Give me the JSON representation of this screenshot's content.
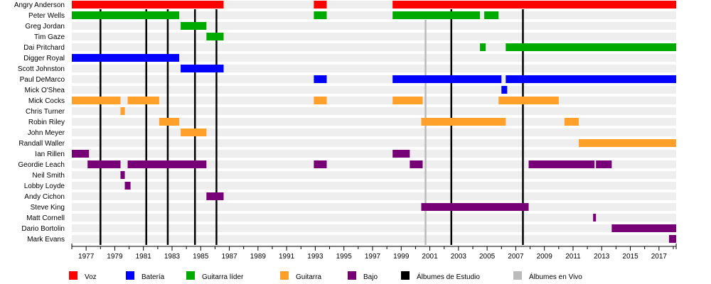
{
  "chart_data": {
    "type": "timeline",
    "title": "",
    "xlabel": "",
    "ylabel": "",
    "xlim": [
      1976.0,
      2018.2
    ],
    "x_ticks": [
      1977,
      1979,
      1981,
      1983,
      1985,
      1987,
      1989,
      1991,
      1993,
      1995,
      1997,
      1999,
      2001,
      2003,
      2005,
      2007,
      2009,
      2011,
      2013,
      2015,
      2017
    ],
    "roles": {
      "voz": {
        "label": "Voz",
        "color": "#ff0000"
      },
      "bateria": {
        "label": "Batería",
        "color": "#0000ff"
      },
      "guitarra_lider": {
        "label": "Guitarra líder",
        "color": "#00aa00"
      },
      "guitarra": {
        "label": "Guitarra",
        "color": "#ffa02a"
      },
      "bajo": {
        "label": "Bajo",
        "color": "#770077"
      },
      "estudio": {
        "label": "Álbumes de Estudio",
        "color": "#000000"
      },
      "vivo": {
        "label": "Álbumes en Vivo",
        "color": "#bbbbbb"
      }
    },
    "legend_order": [
      "voz",
      "bateria",
      "guitarra_lider",
      "guitarra",
      "bajo",
      "estudio",
      "vivo"
    ],
    "members": [
      {
        "name": "Angry Anderson",
        "spans": [
          {
            "role": "voz",
            "start": 1976.0,
            "end": 1986.6
          },
          {
            "role": "voz",
            "start": 1992.9,
            "end": 1993.8
          },
          {
            "role": "voz",
            "start": 1998.4,
            "end": 2018.2
          }
        ]
      },
      {
        "name": "Peter Wells",
        "spans": [
          {
            "role": "guitarra_lider",
            "start": 1976.0,
            "end": 1983.5
          },
          {
            "role": "guitarra_lider",
            "start": 1992.9,
            "end": 1993.8
          },
          {
            "role": "guitarra_lider",
            "start": 1998.4,
            "end": 2004.5
          },
          {
            "role": "guitarra_lider",
            "start": 2004.8,
            "end": 2005.8
          }
        ]
      },
      {
        "name": "Greg Jordan",
        "spans": [
          {
            "role": "guitarra_lider",
            "start": 1983.6,
            "end": 1985.4
          }
        ]
      },
      {
        "name": "Tim Gaze",
        "spans": [
          {
            "role": "guitarra_lider",
            "start": 1985.4,
            "end": 1986.6
          }
        ]
      },
      {
        "name": "Dai Pritchard",
        "spans": [
          {
            "role": "guitarra_lider",
            "start": 2004.5,
            "end": 2004.9
          },
          {
            "role": "guitarra_lider",
            "start": 2006.3,
            "end": 2018.2
          }
        ]
      },
      {
        "name": "Digger Royal",
        "spans": [
          {
            "role": "bateria",
            "start": 1976.0,
            "end": 1983.5
          }
        ]
      },
      {
        "name": "Scott Johnston",
        "spans": [
          {
            "role": "bateria",
            "start": 1983.6,
            "end": 1986.6
          }
        ]
      },
      {
        "name": "Paul DeMarco",
        "spans": [
          {
            "role": "bateria",
            "start": 1992.9,
            "end": 1993.8
          },
          {
            "role": "bateria",
            "start": 1998.4,
            "end": 2006.0
          },
          {
            "role": "bateria",
            "start": 2006.3,
            "end": 2018.2
          }
        ]
      },
      {
        "name": "Mick O'Shea",
        "spans": [
          {
            "role": "bateria",
            "start": 2006.0,
            "end": 2006.4
          }
        ]
      },
      {
        "name": "Mick Cocks",
        "spans": [
          {
            "role": "guitarra",
            "start": 1976.0,
            "end": 1979.4
          },
          {
            "role": "guitarra",
            "start": 1979.9,
            "end": 1982.1
          },
          {
            "role": "guitarra",
            "start": 1992.9,
            "end": 1993.8
          },
          {
            "role": "guitarra",
            "start": 1998.4,
            "end": 2000.5
          },
          {
            "role": "guitarra",
            "start": 2005.8,
            "end": 2010.0
          }
        ]
      },
      {
        "name": "Chris Turner",
        "spans": [
          {
            "role": "guitarra",
            "start": 1979.4,
            "end": 1979.7
          }
        ]
      },
      {
        "name": "Robin Riley",
        "spans": [
          {
            "role": "guitarra",
            "start": 1982.1,
            "end": 1983.5
          },
          {
            "role": "guitarra",
            "start": 2000.4,
            "end": 2006.3
          },
          {
            "role": "guitarra",
            "start": 2010.4,
            "end": 2011.4
          }
        ]
      },
      {
        "name": "John Meyer",
        "spans": [
          {
            "role": "guitarra",
            "start": 1983.6,
            "end": 1985.4
          }
        ]
      },
      {
        "name": "Randall Waller",
        "spans": [
          {
            "role": "guitarra",
            "start": 2011.4,
            "end": 2018.2
          }
        ]
      },
      {
        "name": "Ian Rillen",
        "spans": [
          {
            "role": "bajo",
            "start": 1976.0,
            "end": 1977.2
          },
          {
            "role": "bajo",
            "start": 1998.4,
            "end": 1999.6
          }
        ]
      },
      {
        "name": "Geordie Leach",
        "spans": [
          {
            "role": "bajo",
            "start": 1977.1,
            "end": 1979.4
          },
          {
            "role": "bajo",
            "start": 1979.9,
            "end": 1985.4
          },
          {
            "role": "bajo",
            "start": 1992.9,
            "end": 1993.8
          },
          {
            "role": "bajo",
            "start": 1999.6,
            "end": 2000.5
          },
          {
            "role": "bajo",
            "start": 2007.9,
            "end": 2012.5
          },
          {
            "role": "bajo",
            "start": 2012.6,
            "end": 2013.7
          }
        ]
      },
      {
        "name": "Neil Smith",
        "spans": [
          {
            "role": "bajo",
            "start": 1979.4,
            "end": 1979.7
          }
        ]
      },
      {
        "name": "Lobby Loyde",
        "spans": [
          {
            "role": "bajo",
            "start": 1979.7,
            "end": 1980.1
          }
        ]
      },
      {
        "name": "Andy Cichon",
        "spans": [
          {
            "role": "bajo",
            "start": 1985.4,
            "end": 1986.6
          }
        ]
      },
      {
        "name": "Steve King",
        "spans": [
          {
            "role": "bajo",
            "start": 2000.4,
            "end": 2007.9
          }
        ]
      },
      {
        "name": "Matt Cornell",
        "spans": [
          {
            "role": "bajo",
            "start": 2012.4,
            "end": 2012.6
          }
        ]
      },
      {
        "name": "Dario Bortolin",
        "spans": [
          {
            "role": "bajo",
            "start": 2013.7,
            "end": 2018.2
          }
        ]
      },
      {
        "name": "Mark Evans",
        "spans": [
          {
            "role": "bajo",
            "start": 2017.7,
            "end": 2018.2
          }
        ]
      }
    ],
    "studio_albums": [
      1978.0,
      1981.2,
      1982.7,
      1984.6,
      1986.1,
      2002.5,
      2007.5
    ],
    "live_albums": [
      2000.7
    ]
  }
}
